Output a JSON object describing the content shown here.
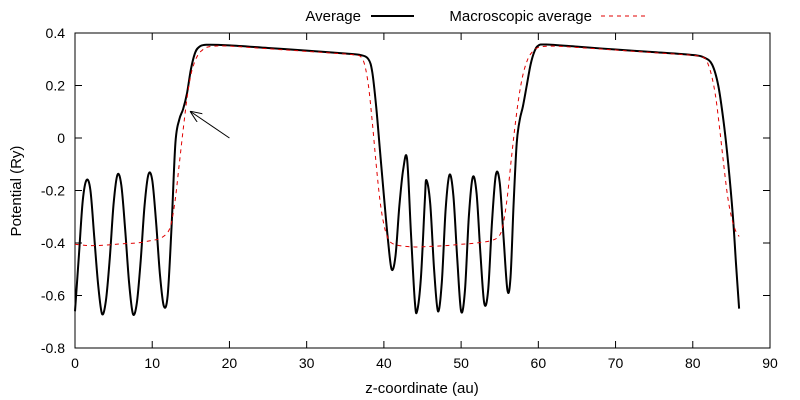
{
  "chart_data": {
    "type": "line",
    "title": "",
    "xlabel": "z-coordinate (au)",
    "ylabel": "Potential (Ry)",
    "xlim": [
      0,
      90
    ],
    "ylim": [
      -0.8,
      0.4
    ],
    "x_ticks": [
      0,
      10,
      20,
      30,
      40,
      50,
      60,
      70,
      80,
      90
    ],
    "y_ticks": [
      -0.8,
      -0.6,
      -0.4,
      -0.2,
      0,
      0.2,
      0.4
    ],
    "x_tick_labels": [
      "0",
      "10",
      "20",
      "30",
      "40",
      "50",
      "60",
      "70",
      "80",
      "90"
    ],
    "y_tick_labels": [
      "-0.8",
      "-0.6",
      "-0.4",
      "-0.2",
      "0",
      "0.2",
      "0.4"
    ],
    "grid": false,
    "legend_position": "top",
    "series": [
      {
        "name": "Average",
        "color": "#000000",
        "style": "solid",
        "points": [
          [
            0.0,
            -0.66
          ],
          [
            0.5,
            -0.45
          ],
          [
            1.0,
            -0.24
          ],
          [
            1.5,
            -0.16
          ],
          [
            2.0,
            -0.2
          ],
          [
            2.5,
            -0.38
          ],
          [
            3.0,
            -0.56
          ],
          [
            3.5,
            -0.67
          ],
          [
            4.0,
            -0.62
          ],
          [
            4.5,
            -0.46
          ],
          [
            5.0,
            -0.25
          ],
          [
            5.5,
            -0.14
          ],
          [
            6.0,
            -0.18
          ],
          [
            6.5,
            -0.35
          ],
          [
            7.0,
            -0.55
          ],
          [
            7.5,
            -0.67
          ],
          [
            8.0,
            -0.63
          ],
          [
            8.5,
            -0.47
          ],
          [
            9.0,
            -0.26
          ],
          [
            9.5,
            -0.14
          ],
          [
            10.0,
            -0.16
          ],
          [
            10.5,
            -0.32
          ],
          [
            11.0,
            -0.52
          ],
          [
            11.5,
            -0.64
          ],
          [
            12.0,
            -0.6
          ],
          [
            12.5,
            -0.34
          ],
          [
            13.0,
            -0.02
          ],
          [
            13.5,
            0.07
          ],
          [
            14.0,
            0.11
          ],
          [
            14.5,
            0.17
          ],
          [
            15.0,
            0.26
          ],
          [
            15.5,
            0.32
          ],
          [
            16.0,
            0.345
          ],
          [
            17.0,
            0.355
          ],
          [
            20.0,
            0.353
          ],
          [
            25.0,
            0.343
          ],
          [
            30.0,
            0.333
          ],
          [
            35.0,
            0.322
          ],
          [
            37.0,
            0.316
          ],
          [
            38.0,
            0.3
          ],
          [
            38.5,
            0.25
          ],
          [
            39.0,
            0.12
          ],
          [
            39.5,
            -0.05
          ],
          [
            40.0,
            -0.22
          ],
          [
            40.5,
            -0.38
          ],
          [
            41.0,
            -0.5
          ],
          [
            41.5,
            -0.45
          ],
          [
            42.0,
            -0.26
          ],
          [
            42.5,
            -0.12
          ],
          [
            43.0,
            -0.08
          ],
          [
            43.5,
            -0.36
          ],
          [
            44.0,
            -0.62
          ],
          [
            44.3,
            -0.66
          ],
          [
            44.8,
            -0.53
          ],
          [
            45.3,
            -0.24
          ],
          [
            45.5,
            -0.16
          ],
          [
            46.0,
            -0.25
          ],
          [
            46.5,
            -0.5
          ],
          [
            47.0,
            -0.66
          ],
          [
            47.5,
            -0.55
          ],
          [
            48.0,
            -0.27
          ],
          [
            48.5,
            -0.14
          ],
          [
            49.0,
            -0.22
          ],
          [
            49.5,
            -0.46
          ],
          [
            50.0,
            -0.66
          ],
          [
            50.5,
            -0.58
          ],
          [
            51.0,
            -0.3
          ],
          [
            51.5,
            -0.15
          ],
          [
            52.0,
            -0.21
          ],
          [
            52.5,
            -0.44
          ],
          [
            53.0,
            -0.63
          ],
          [
            53.5,
            -0.58
          ],
          [
            54.0,
            -0.32
          ],
          [
            54.5,
            -0.14
          ],
          [
            55.0,
            -0.17
          ],
          [
            55.5,
            -0.38
          ],
          [
            56.0,
            -0.58
          ],
          [
            56.4,
            -0.53
          ],
          [
            56.8,
            -0.25
          ],
          [
            57.2,
            -0.02
          ],
          [
            57.6,
            0.07
          ],
          [
            58.0,
            0.12
          ],
          [
            58.5,
            0.2
          ],
          [
            59.0,
            0.28
          ],
          [
            59.5,
            0.33
          ],
          [
            60.0,
            0.352
          ],
          [
            61.0,
            0.356
          ],
          [
            65.0,
            0.348
          ],
          [
            70.0,
            0.337
          ],
          [
            75.0,
            0.327
          ],
          [
            80.0,
            0.316
          ],
          [
            81.5,
            0.306
          ],
          [
            82.5,
            0.28
          ],
          [
            83.3,
            0.2
          ],
          [
            84.0,
            0.06
          ],
          [
            84.6,
            -0.1
          ],
          [
            85.2,
            -0.3
          ],
          [
            85.6,
            -0.48
          ],
          [
            86.0,
            -0.65
          ]
        ]
      },
      {
        "name": "Macroscopic average",
        "color": "#e00000",
        "style": "dashed",
        "points": [
          [
            0.0,
            -0.405
          ],
          [
            2.0,
            -0.41
          ],
          [
            4.0,
            -0.408
          ],
          [
            6.0,
            -0.403
          ],
          [
            8.0,
            -0.4
          ],
          [
            10.0,
            -0.39
          ],
          [
            11.0,
            -0.383
          ],
          [
            12.0,
            -0.36
          ],
          [
            12.5,
            -0.32
          ],
          [
            13.0,
            -0.23
          ],
          [
            13.5,
            -0.1
          ],
          [
            14.0,
            0.03
          ],
          [
            14.5,
            0.15
          ],
          [
            15.0,
            0.24
          ],
          [
            15.5,
            0.29
          ],
          [
            16.0,
            0.32
          ],
          [
            16.5,
            0.335
          ],
          [
            17.0,
            0.345
          ],
          [
            18.0,
            0.35
          ],
          [
            20.0,
            0.35
          ],
          [
            25.0,
            0.34
          ],
          [
            30.0,
            0.33
          ],
          [
            35.0,
            0.32
          ],
          [
            36.5,
            0.315
          ],
          [
            37.0,
            0.31
          ],
          [
            37.5,
            0.28
          ],
          [
            38.0,
            0.2
          ],
          [
            38.5,
            0.06
          ],
          [
            39.0,
            -0.1
          ],
          [
            39.5,
            -0.24
          ],
          [
            40.0,
            -0.33
          ],
          [
            40.5,
            -0.38
          ],
          [
            41.0,
            -0.4
          ],
          [
            42.0,
            -0.41
          ],
          [
            44.0,
            -0.415
          ],
          [
            46.0,
            -0.413
          ],
          [
            48.0,
            -0.41
          ],
          [
            50.0,
            -0.405
          ],
          [
            52.0,
            -0.4
          ],
          [
            54.0,
            -0.39
          ],
          [
            55.0,
            -0.37
          ],
          [
            55.5,
            -0.32
          ],
          [
            56.0,
            -0.22
          ],
          [
            56.5,
            -0.08
          ],
          [
            57.0,
            0.05
          ],
          [
            57.5,
            0.16
          ],
          [
            58.0,
            0.24
          ],
          [
            58.5,
            0.29
          ],
          [
            59.0,
            0.32
          ],
          [
            60.0,
            0.345
          ],
          [
            62.0,
            0.35
          ],
          [
            65.0,
            0.345
          ],
          [
            70.0,
            0.335
          ],
          [
            75.0,
            0.325
          ],
          [
            80.0,
            0.315
          ],
          [
            81.5,
            0.305
          ],
          [
            82.0,
            0.28
          ],
          [
            82.5,
            0.23
          ],
          [
            83.0,
            0.15
          ],
          [
            83.5,
            0.03
          ],
          [
            84.0,
            -0.1
          ],
          [
            84.5,
            -0.22
          ],
          [
            85.0,
            -0.3
          ],
          [
            85.5,
            -0.35
          ],
          [
            86.0,
            -0.375
          ]
        ]
      }
    ],
    "annotations": [
      {
        "type": "arrow",
        "from": [
          20.0,
          0.0
        ],
        "to": [
          15.0,
          0.1
        ]
      }
    ]
  }
}
